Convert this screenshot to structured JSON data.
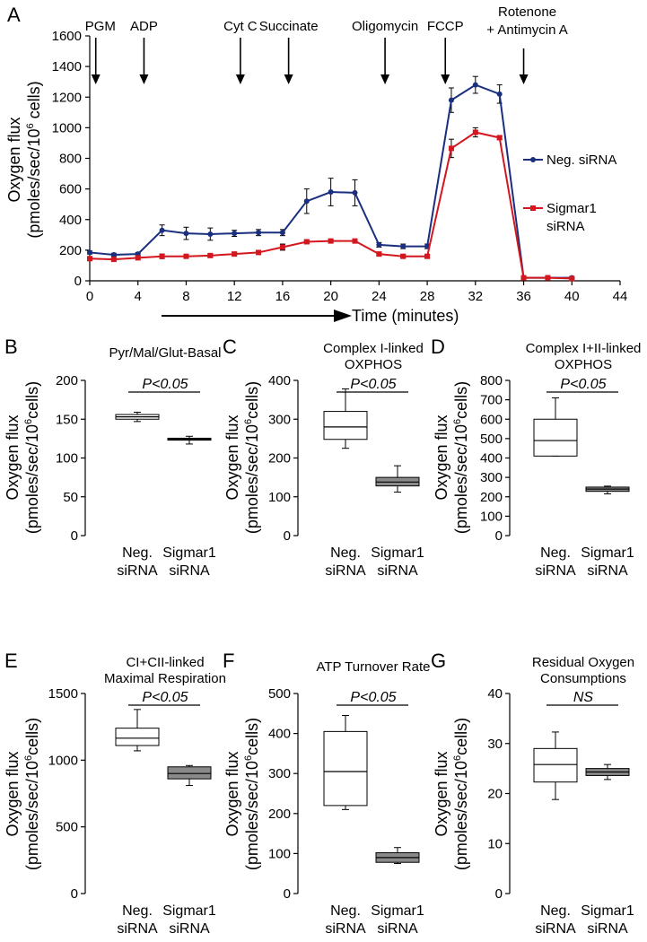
{
  "chart_data": [
    {
      "id": "A",
      "type": "line",
      "panel_label": "A",
      "xlabel": "Time (minutes)",
      "ylabel": [
        "Oxygen flux",
        "(pmoles/sec/10",
        "6",
        " cells)"
      ],
      "xlim": [
        0,
        44
      ],
      "ylim": [
        0,
        1600
      ],
      "xticks": [
        0,
        4,
        8,
        12,
        16,
        20,
        24,
        28,
        32,
        36,
        40,
        44
      ],
      "yticks": [
        0,
        200,
        400,
        600,
        800,
        1000,
        1200,
        1400,
        1600
      ],
      "injections": [
        {
          "label": "PGM",
          "time": 0.5
        },
        {
          "label": "ADP",
          "time": 4.5
        },
        {
          "label": "Cyt C",
          "time": 12.5
        },
        {
          "label": "Succinate",
          "time": 16.5
        },
        {
          "label": "Oligomycin",
          "time": 24.5
        },
        {
          "label": "FCCP",
          "time": 29.5
        },
        {
          "label": "Rotenone",
          "label2": "+ Antimycin A",
          "time": 36
        }
      ],
      "series": [
        {
          "name": "Neg. siRNA",
          "color": "#1a2f7e",
          "x": [
            0,
            2,
            4,
            6,
            8,
            10,
            12,
            14,
            16,
            18,
            20,
            22,
            24,
            26,
            28,
            30,
            32,
            34,
            36,
            38,
            40
          ],
          "y": [
            185,
            170,
            175,
            330,
            310,
            305,
            310,
            315,
            315,
            520,
            580,
            575,
            235,
            225,
            225,
            1180,
            1280,
            1220,
            20,
            20,
            20
          ],
          "err": [
            10,
            10,
            10,
            35,
            40,
            40,
            20,
            20,
            20,
            80,
            90,
            85,
            15,
            15,
            15,
            80,
            55,
            60,
            5,
            5,
            5
          ]
        },
        {
          "name": "Sigmar1 siRNA",
          "color": "#d4171e",
          "x": [
            0,
            2,
            4,
            6,
            8,
            10,
            12,
            14,
            16,
            18,
            20,
            22,
            24,
            26,
            28,
            30,
            32,
            34,
            36,
            38,
            40
          ],
          "y": [
            145,
            140,
            150,
            160,
            160,
            165,
            175,
            185,
            220,
            255,
            260,
            260,
            175,
            160,
            160,
            865,
            970,
            935,
            20,
            20,
            15
          ],
          "err": [
            5,
            5,
            5,
            15,
            10,
            10,
            10,
            10,
            20,
            10,
            10,
            10,
            10,
            10,
            10,
            60,
            30,
            10,
            5,
            5,
            5
          ]
        }
      ]
    },
    {
      "id": "B",
      "type": "box",
      "panel_label": "B",
      "title": [
        "Pyr/Mal/Glut-Basal"
      ],
      "ylim": [
        0,
        200
      ],
      "yticks": [
        0,
        50,
        100,
        150,
        200
      ],
      "significance": "P<0.05",
      "groups": [
        {
          "label1": "Neg.",
          "label2": "siRNA",
          "fill": "#ffffff",
          "whisker_low": 147,
          "q1": 150,
          "median": 153,
          "q3": 156,
          "whisker_high": 159
        },
        {
          "label1": "Sigmar1",
          "label2": "siRNA",
          "fill": "#8a8a8a",
          "whisker_low": 118,
          "q1": 123,
          "median": 124,
          "q3": 125.5,
          "whisker_high": 128
        }
      ]
    },
    {
      "id": "C",
      "type": "box",
      "panel_label": "C",
      "title": [
        "Complex I-linked",
        "OXPHOS"
      ],
      "ylim": [
        0,
        400
      ],
      "yticks": [
        0,
        100,
        200,
        300,
        400
      ],
      "significance": "P<0.05",
      "groups": [
        {
          "label1": "Neg.",
          "label2": "siRNA",
          "fill": "#ffffff",
          "whisker_low": 225,
          "q1": 248,
          "median": 280,
          "q3": 320,
          "whisker_high": 378
        },
        {
          "label1": "Sigmar1",
          "label2": "siRNA",
          "fill": "#8a8a8a",
          "whisker_low": 112,
          "q1": 128,
          "median": 138,
          "q3": 150,
          "whisker_high": 180
        }
      ]
    },
    {
      "id": "D",
      "type": "box",
      "panel_label": "D",
      "title": [
        "Complex I+II-linked",
        "OXPHOS"
      ],
      "ylim": [
        0,
        800
      ],
      "yticks": [
        0,
        100,
        200,
        300,
        400,
        500,
        600,
        700,
        800
      ],
      "significance": "P<0.05",
      "groups": [
        {
          "label1": "Neg.",
          "label2": "siRNA",
          "fill": "#ffffff",
          "whisker_low": 410,
          "q1": 410,
          "median": 490,
          "q3": 600,
          "whisker_high": 710
        },
        {
          "label1": "Sigmar1",
          "label2": "siRNA",
          "fill": "#8a8a8a",
          "whisker_low": 215,
          "q1": 228,
          "median": 240,
          "q3": 250,
          "whisker_high": 255
        }
      ]
    },
    {
      "id": "E",
      "type": "box",
      "panel_label": "E",
      "title": [
        "CI+CII-linked",
        "Maximal Respiration"
      ],
      "ylim": [
        0,
        1500
      ],
      "yticks": [
        0,
        500,
        1000,
        1500
      ],
      "significance": "P<0.05",
      "groups": [
        {
          "label1": "Neg.",
          "label2": "siRNA",
          "fill": "#ffffff",
          "whisker_low": 1070,
          "q1": 1110,
          "median": 1165,
          "q3": 1240,
          "whisker_high": 1380
        },
        {
          "label1": "Sigmar1",
          "label2": "siRNA",
          "fill": "#8a8a8a",
          "whisker_low": 810,
          "q1": 860,
          "median": 900,
          "q3": 950,
          "whisker_high": 960
        }
      ]
    },
    {
      "id": "F",
      "type": "box",
      "panel_label": "F",
      "title": [
        "ATP Turnover Rate"
      ],
      "ylim": [
        0,
        500
      ],
      "yticks": [
        0,
        100,
        200,
        300,
        400,
        500
      ],
      "significance": "P<0.05",
      "groups": [
        {
          "label1": "Neg.",
          "label2": "siRNA",
          "fill": "#ffffff",
          "whisker_low": 210,
          "q1": 220,
          "median": 305,
          "q3": 405,
          "whisker_high": 445
        },
        {
          "label1": "Sigmar1",
          "label2": "siRNA",
          "fill": "#8a8a8a",
          "whisker_low": 75,
          "q1": 78,
          "median": 90,
          "q3": 102,
          "whisker_high": 115
        }
      ]
    },
    {
      "id": "G",
      "type": "box",
      "panel_label": "G",
      "title": [
        "Residual Oxygen",
        "Consumptions"
      ],
      "ylim": [
        0,
        40
      ],
      "yticks": [
        0,
        10,
        20,
        30,
        40
      ],
      "significance": "NS",
      "groups": [
        {
          "label1": "Neg.",
          "label2": "siRNA",
          "fill": "#ffffff",
          "whisker_low": 18.8,
          "q1": 22.3,
          "median": 25.8,
          "q3": 29,
          "whisker_high": 32.3
        },
        {
          "label1": "Sigmar1",
          "label2": "siRNA",
          "fill": "#8a8a8a",
          "whisker_low": 22.8,
          "q1": 23.6,
          "median": 24.3,
          "q3": 25,
          "whisker_high": 25.8
        }
      ]
    }
  ],
  "box_ylabel": [
    "Oxygen flux",
    "(pmoles/sec/10",
    "6",
    "cells)"
  ]
}
